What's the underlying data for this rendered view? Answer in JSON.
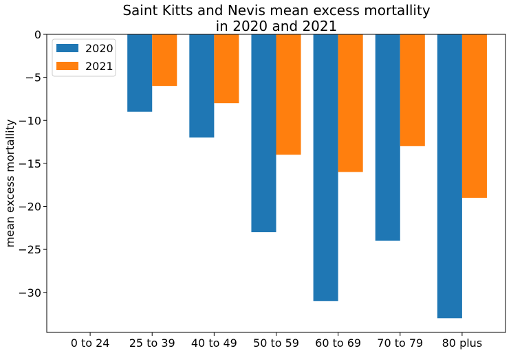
{
  "chart_data": {
    "type": "bar",
    "title": "Saint Kitts and Nevis mean excess mortallity\nin 2020 and 2021",
    "xlabel": "",
    "ylabel": "mean excess mortallity",
    "categories": [
      "0 to 24",
      "25 to 39",
      "40 to 49",
      "50 to 59",
      "60 to 69",
      "70 to 79",
      "80 plus"
    ],
    "series": [
      {
        "name": "2020",
        "values": [
          0,
          -9,
          -12,
          -23,
          -31,
          -24,
          -33
        ],
        "color": "#1f77b4"
      },
      {
        "name": "2021",
        "values": [
          0,
          -6,
          -8,
          -14,
          -16,
          -13,
          -19
        ],
        "color": "#ff7f0e"
      }
    ],
    "ylim": [
      -34.65,
      0
    ],
    "yticks": [
      0,
      -5,
      -10,
      -15,
      -20,
      -25,
      -30
    ],
    "ytick_labels": [
      "0",
      "−5",
      "−10",
      "−15",
      "−20",
      "−25",
      "−30"
    ],
    "grid": false,
    "legend_position": "top-left"
  }
}
